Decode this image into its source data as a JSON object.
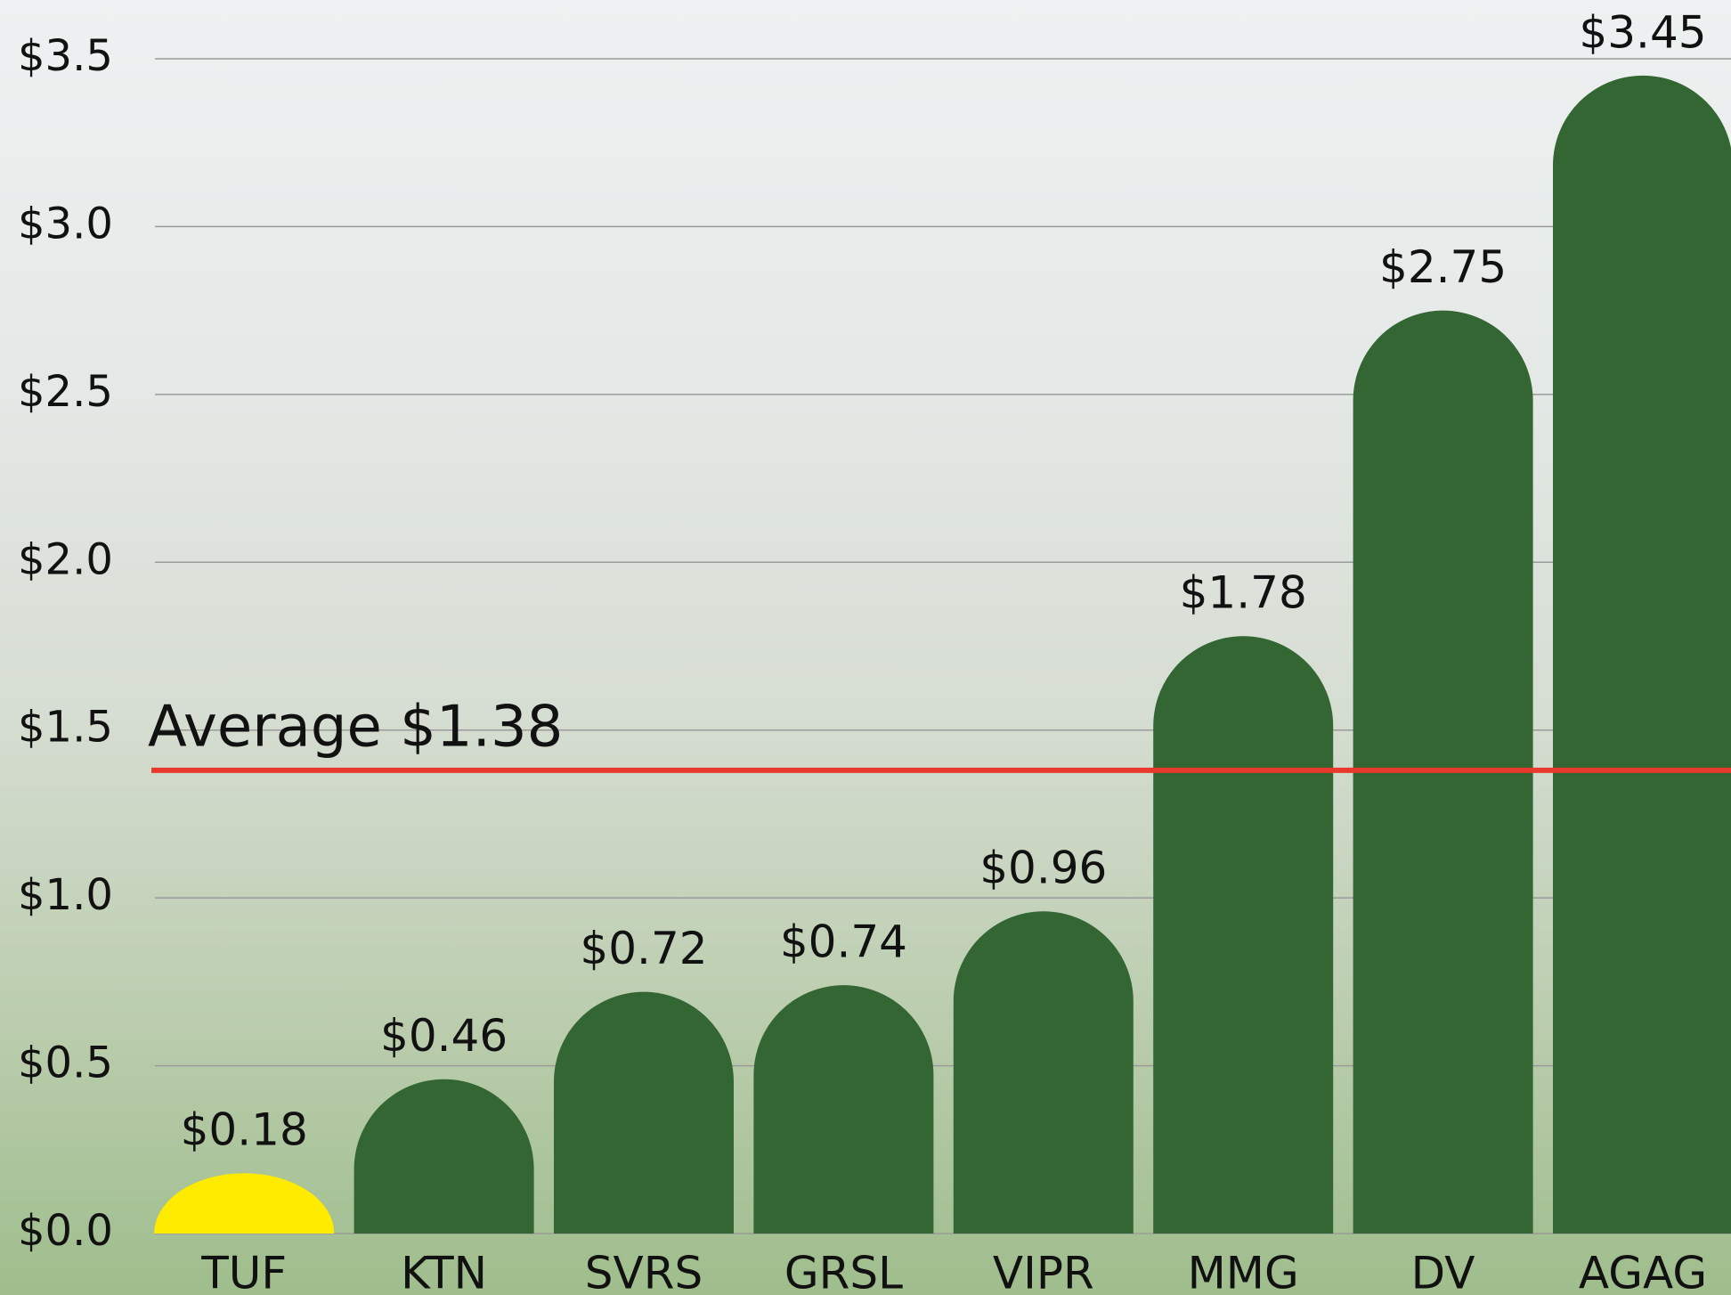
{
  "chart_data": {
    "type": "bar",
    "categories": [
      "TUF",
      "KTN",
      "SVRS",
      "GRSL",
      "VIPR",
      "MMG",
      "DV",
      "AGAG"
    ],
    "values": [
      0.18,
      0.46,
      0.72,
      0.74,
      0.96,
      1.78,
      2.75,
      3.45
    ],
    "value_labels": [
      "$0.18",
      "$0.46",
      "$0.72",
      "$0.74",
      "$0.96",
      "$1.78",
      "$2.75",
      "$3.45"
    ],
    "colors": [
      "#ffeb00",
      "#336633",
      "#336633",
      "#336633",
      "#336633",
      "#336633",
      "#336633",
      "#336633"
    ],
    "ylim": [
      0,
      3.5
    ],
    "yticks": [
      {
        "value": 0,
        "label": "$0.0"
      },
      {
        "value": 0.5,
        "label": "$0.5"
      },
      {
        "value": 1,
        "label": "$1.0"
      },
      {
        "value": 1.5,
        "label": "$1.5"
      },
      {
        "value": 2,
        "label": "$2.0"
      },
      {
        "value": 2.5,
        "label": "$2.5"
      },
      {
        "value": 3,
        "label": "$3.0"
      },
      {
        "value": 3.5,
        "label": "$3.5"
      }
    ],
    "grid": true,
    "average": {
      "value": 1.38,
      "label": "Average $1.38",
      "color": "#e8392f"
    }
  }
}
